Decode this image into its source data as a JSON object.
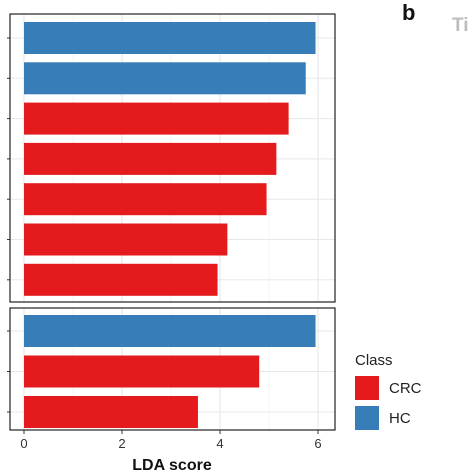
{
  "panel_letter": "b",
  "side_panel_title_fragment": "Ti",
  "legend": {
    "title": "Class",
    "items": [
      {
        "label": "CRC",
        "color": "#e41a1c"
      },
      {
        "label": "HC",
        "color": "#377eb8"
      }
    ]
  },
  "colors": {
    "CRC": "#e41a1c",
    "HC": "#377eb8"
  },
  "chart_data": {
    "type": "bar",
    "orientation": "horizontal",
    "xlabel": "LDA score",
    "xlim": [
      0,
      6.2
    ],
    "x_ticks": [
      "0",
      "2",
      "4",
      "6"
    ],
    "grid": true,
    "legend_position": "bottom-right",
    "panels": [
      {
        "bars": [
          {
            "value": 5.95,
            "class": "HC"
          },
          {
            "value": 5.75,
            "class": "HC"
          },
          {
            "value": 5.4,
            "class": "CRC"
          },
          {
            "value": 5.15,
            "class": "CRC"
          },
          {
            "value": 4.95,
            "class": "CRC"
          },
          {
            "value": 4.15,
            "class": "CRC"
          },
          {
            "value": 3.95,
            "class": "CRC"
          }
        ]
      },
      {
        "bars": [
          {
            "value": 5.95,
            "class": "HC"
          },
          {
            "value": 4.8,
            "class": "CRC"
          },
          {
            "value": 3.55,
            "class": "CRC"
          }
        ]
      }
    ]
  }
}
